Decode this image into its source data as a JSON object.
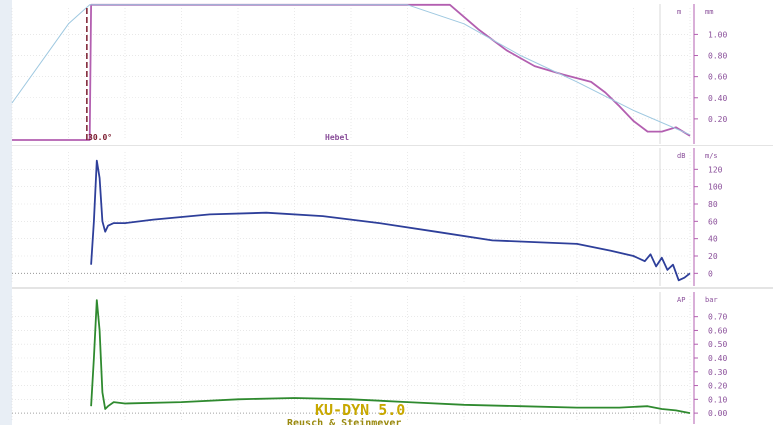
{
  "chart_data": [
    {
      "type": "line",
      "panel": "lift",
      "unit_left": "m",
      "unit_right": "mm",
      "ylim": [
        0,
        1.25
      ],
      "y_ticks": [
        "1.00",
        "0.80",
        "0.60",
        "0.40",
        "0.20"
      ],
      "y_tick_values": [
        1.0,
        0.8,
        0.6,
        0.4,
        0.2
      ],
      "annotation_angle": "30.0°",
      "annotation_label": "Hebel",
      "line_color": "#b35fb0",
      "ref_color": "#9ec8e0",
      "grid": true,
      "series": [
        {
          "x": [
            0,
            27.5,
            28,
            140,
            155,
            165,
            175,
            185,
            195,
            205,
            210,
            215,
            220,
            225,
            230,
            235,
            240
          ],
          "y": [
            0,
            0,
            1.28,
            1.28,
            1.28,
            1.05,
            0.85,
            0.7,
            0.62,
            0.55,
            0.45,
            0.32,
            0.18,
            0.08,
            0.08,
            0.12,
            0.04
          ]
        },
        {
          "x": [
            0,
            20,
            27.5,
            140,
            160,
            180,
            200,
            220,
            240
          ],
          "y": [
            0.35,
            1.1,
            1.28,
            1.28,
            1.1,
            0.8,
            0.55,
            0.28,
            0.05
          ]
        }
      ]
    },
    {
      "type": "line",
      "panel": "velocity",
      "unit_left": "dB",
      "unit_right": "m/s",
      "ylim": [
        -10,
        140
      ],
      "y_ticks": [
        "120",
        "100",
        "80",
        "60",
        "40",
        "20",
        "0"
      ],
      "y_tick_values": [
        120,
        100,
        80,
        60,
        40,
        20,
        0
      ],
      "line_color": "#2e3f9a",
      "grid": true,
      "series": [
        {
          "x": [
            28,
            29,
            30,
            31,
            32,
            33,
            34,
            36,
            40,
            50,
            70,
            90,
            110,
            130,
            150,
            170,
            185,
            200,
            212,
            220,
            224,
            226,
            228,
            230,
            232,
            234,
            236,
            238,
            240
          ],
          "y": [
            10,
            60,
            130,
            110,
            60,
            48,
            55,
            58,
            58,
            62,
            68,
            70,
            66,
            58,
            48,
            38,
            36,
            34,
            26,
            20,
            14,
            22,
            8,
            18,
            4,
            10,
            -8,
            -5,
            0
          ]
        }
      ]
    },
    {
      "type": "line",
      "panel": "pressure",
      "unit_left": "AP",
      "unit_right": "bar",
      "ylim": [
        -0.05,
        0.85
      ],
      "y_ticks": [
        "0.70",
        "0.60",
        "0.50",
        "0.40",
        "0.30",
        "0.20",
        "0.10",
        "0.00"
      ],
      "y_tick_values": [
        0.7,
        0.6,
        0.5,
        0.4,
        0.3,
        0.2,
        0.1,
        0.0
      ],
      "line_color": "#2f8a2f",
      "grid": true,
      "series": [
        {
          "x": [
            28,
            29,
            30,
            31,
            32,
            33,
            34,
            36,
            40,
            60,
            80,
            100,
            120,
            140,
            160,
            180,
            200,
            215,
            225,
            230,
            235,
            240
          ],
          "y": [
            0.05,
            0.4,
            0.82,
            0.6,
            0.15,
            0.03,
            0.05,
            0.08,
            0.07,
            0.08,
            0.1,
            0.11,
            0.1,
            0.08,
            0.06,
            0.05,
            0.04,
            0.04,
            0.05,
            0.03,
            0.02,
            0.0
          ]
        }
      ]
    }
  ],
  "watermark": {
    "line1": "KU-DYN  5.0",
    "line2": "Reusch  & Steinmeyer"
  },
  "colors": {
    "panel_bg": "#ffffff",
    "grid": "#dcdcdc",
    "axis_line": "#b35fb0",
    "ticks": "#8a4f9a",
    "watermark": "#c8a800"
  }
}
